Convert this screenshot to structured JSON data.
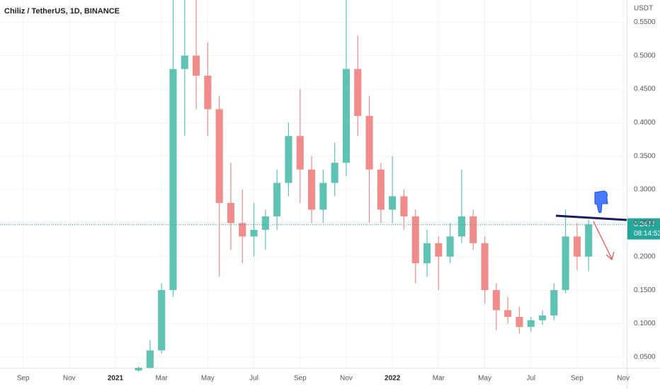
{
  "chart_data": {
    "type": "candlestick",
    "title": "Chiliz / TetherUS, 1D, BINANCE",
    "y_axis_label": "USDT",
    "up_color": "#5fc3b4",
    "down_color": "#f08c8a",
    "x": [
      5,
      5.5,
      6,
      6.5,
      7,
      7.5,
      8,
      8.5,
      9,
      9.5,
      10,
      10.5,
      11,
      11.5,
      12,
      12.5,
      13,
      13.5,
      14,
      14.5,
      15,
      15.5,
      16,
      16.5,
      17,
      17.5,
      18,
      18.5,
      19,
      19.5,
      20,
      20.5,
      21,
      21.5,
      22,
      22.5,
      23,
      23.5,
      24,
      24.5
    ],
    "open": [
      0.03,
      0.034,
      0.06,
      0.15,
      0.48,
      0.5,
      0.47,
      0.42,
      0.28,
      0.25,
      0.23,
      0.24,
      0.26,
      0.31,
      0.38,
      0.33,
      0.27,
      0.31,
      0.34,
      0.48,
      0.41,
      0.33,
      0.27,
      0.29,
      0.26,
      0.19,
      0.22,
      0.2,
      0.23,
      0.26,
      0.22,
      0.15,
      0.12,
      0.11,
      0.095,
      0.105,
      0.112,
      0.15,
      0.23,
      0.2
    ],
    "high": [
      0.036,
      0.075,
      0.16,
      0.6,
      0.6,
      0.6,
      0.52,
      0.44,
      0.34,
      0.3,
      0.28,
      0.27,
      0.33,
      0.4,
      0.45,
      0.35,
      0.33,
      0.37,
      0.6,
      0.53,
      0.44,
      0.34,
      0.35,
      0.3,
      0.27,
      0.24,
      0.23,
      0.25,
      0.33,
      0.27,
      0.23,
      0.16,
      0.14,
      0.125,
      0.11,
      0.12,
      0.16,
      0.27,
      0.25,
      0.255
    ],
    "low": [
      0.028,
      0.033,
      0.055,
      0.14,
      0.38,
      0.42,
      0.38,
      0.17,
      0.21,
      0.19,
      0.2,
      0.21,
      0.24,
      0.29,
      0.28,
      0.25,
      0.25,
      0.29,
      0.32,
      0.38,
      0.25,
      0.25,
      0.25,
      0.24,
      0.16,
      0.17,
      0.15,
      0.19,
      0.22,
      0.21,
      0.13,
      0.09,
      0.1,
      0.085,
      0.088,
      0.098,
      0.105,
      0.145,
      0.18,
      0.178
    ],
    "close": [
      0.034,
      0.06,
      0.15,
      0.48,
      0.5,
      0.47,
      0.42,
      0.28,
      0.25,
      0.23,
      0.24,
      0.26,
      0.31,
      0.38,
      0.33,
      0.27,
      0.31,
      0.34,
      0.48,
      0.41,
      0.33,
      0.27,
      0.29,
      0.26,
      0.19,
      0.22,
      0.2,
      0.23,
      0.26,
      0.22,
      0.15,
      0.12,
      0.11,
      0.095,
      0.105,
      0.112,
      0.15,
      0.23,
      0.2,
      0.248
    ],
    "xlim": [
      -1.0,
      26.15
    ],
    "xticks": [
      {
        "value": 0,
        "label": "Sep"
      },
      {
        "value": 2,
        "label": "Nov"
      },
      {
        "value": 4,
        "label": "2021"
      },
      {
        "value": 6,
        "label": "Mar"
      },
      {
        "value": 8,
        "label": "May"
      },
      {
        "value": 10,
        "label": "Jul"
      },
      {
        "value": 12,
        "label": "Sep"
      },
      {
        "value": 14,
        "label": "Nov"
      },
      {
        "value": 16,
        "label": "2022"
      },
      {
        "value": 18,
        "label": "Mar"
      },
      {
        "value": 20,
        "label": "May"
      },
      {
        "value": 22,
        "label": "Jul"
      },
      {
        "value": 24,
        "label": "Sep"
      },
      {
        "value": 26,
        "label": "Nov"
      }
    ],
    "ylim": [
      0.034,
      0.583
    ],
    "yticks": [
      {
        "value": 0.05,
        "label": "0.0500"
      },
      {
        "value": 0.1,
        "label": "0.1000"
      },
      {
        "value": 0.15,
        "label": "0.1500"
      },
      {
        "value": 0.2,
        "label": "0.2000"
      },
      {
        "value": 0.25,
        "label": "0.2500"
      },
      {
        "value": 0.3,
        "label": "0.3000"
      },
      {
        "value": 0.35,
        "label": "0.3500"
      },
      {
        "value": 0.4,
        "label": "0.4000"
      },
      {
        "value": 0.45,
        "label": "0.4500"
      },
      {
        "value": 0.5,
        "label": "0.5000"
      },
      {
        "value": 0.55,
        "label": "0.5500"
      }
    ],
    "grid": true,
    "last_price": 0.2477,
    "countdown": "08:14:53"
  }
}
